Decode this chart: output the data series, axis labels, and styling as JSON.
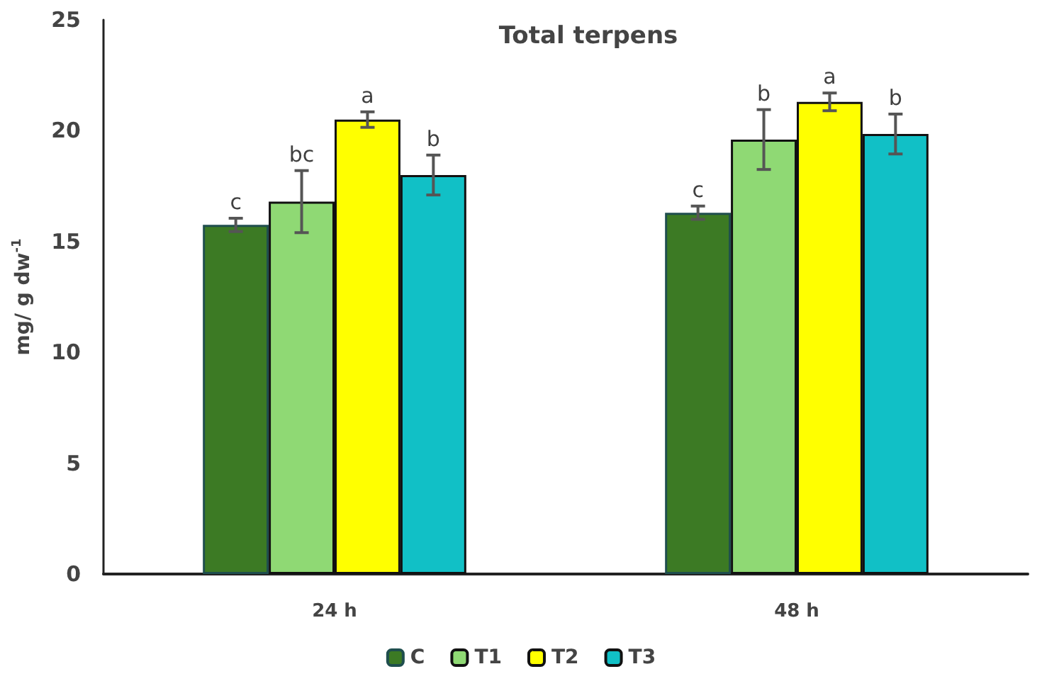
{
  "chart_data": {
    "type": "bar",
    "title": "Total terpens",
    "ylabel": "mg/ g dw$^{-1}$",
    "categories": [
      "24 h",
      "48 h"
    ],
    "series": [
      {
        "name": "C",
        "color": "#3c7a24",
        "values": [
          15.75,
          16.3
        ],
        "errors": [
          0.3,
          0.3
        ]
      },
      {
        "name": "T1",
        "color": "#8fd974",
        "values": [
          16.8,
          19.6
        ],
        "errors": [
          1.4,
          1.35
        ]
      },
      {
        "name": "T2",
        "color": "#ffff00",
        "values": [
          20.5,
          21.3
        ],
        "errors": [
          0.35,
          0.4
        ]
      },
      {
        "name": "T3",
        "color": "#11c0c6",
        "values": [
          18.0,
          19.85
        ],
        "errors": [
          0.9,
          0.9
        ]
      }
    ],
    "ylim": [
      0,
      25
    ],
    "yticks": [
      0,
      5,
      10,
      15,
      20,
      25
    ],
    "grid": false,
    "legend": "bottom",
    "annotations": [
      "c",
      "bc",
      "a",
      "b",
      "c",
      "b",
      "a",
      "b"
    ]
  }
}
